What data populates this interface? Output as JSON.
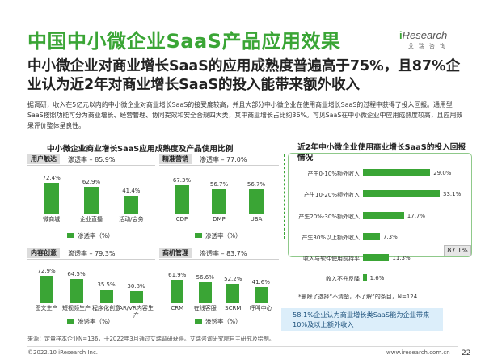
{
  "slide": {
    "title": "中国中小微企业SaaS产品应用效果",
    "headline": "中小微企业对商业增长SaaS的应用成熟度普遍高于75%，且87%企业认为近2年对商业增长SaaS的投入能带来额外收入",
    "intro": "据调研，收入在5亿元以内的中小微企业对商业增长SaaS的接受度较高，并且大部分中小微企业在使用商业增长SaaS的过程中获得了投入回报。通用型SaaS按照功能可分为商业增长、经营管理、协同提效和安全合规四大类，其中商业增长占比约36%。可见SaaS在中小微企业中应用成熟度较高，且应用效果评价整体呈良性。",
    "logo_name": "Research",
    "logo_prefix": "i",
    "logo_sub": "艾瑞咨询"
  },
  "left_chart": {
    "title": "中小微企业商业增长SaaS应用成熟度及产品使用比例",
    "legend_label": "渗透率（%）",
    "panels": [
      {
        "tag": "用户触达",
        "rate_text": "渗透率 – 85.9%",
        "categories": [
          "微商城",
          "企业直播",
          "活动/会务"
        ],
        "values": [
          72.4,
          62.9,
          41.4
        ],
        "value_labels": [
          "72.4%",
          "62.9%",
          "41.4%"
        ]
      },
      {
        "tag": "精准营销",
        "rate_text": "渗透率 – 77.0%",
        "categories": [
          "CDP",
          "DMP",
          "UBA"
        ],
        "values": [
          67.3,
          56.7,
          56.7
        ],
        "value_labels": [
          "67.3%",
          "56.7%",
          "56.7%"
        ]
      },
      {
        "tag": "内容创意",
        "rate_text": "渗透率 – 79.3%",
        "categories": [
          "图文生产",
          "短视频生产",
          "程序化创意",
          "AR/VR内容生产"
        ],
        "values": [
          72.9,
          64.5,
          35.5,
          30.8
        ],
        "value_labels": [
          "72.9%",
          "64.5%",
          "35.5%",
          "30.8%"
        ]
      },
      {
        "tag": "商机管理",
        "rate_text": "渗透率 – 83.7%",
        "categories": [
          "CRM",
          "在线客服",
          "SCRM",
          "呼叫中心"
        ],
        "values": [
          61.9,
          56.6,
          52.2,
          41.6
        ],
        "value_labels": [
          "61.9%",
          "56.6%",
          "52.2%",
          "41.6%"
        ]
      }
    ]
  },
  "chart_data": {
    "type": "bar",
    "title": "近2年中小微企业使用商业增长SaaS的投入回报情况",
    "categories": [
      "产生0-10%额外收入",
      "产生10-20%额外收入",
      "产生20%-30%额外收入",
      "产生30%以上额外收入",
      "收入与软件使用前持平",
      "收入不升反降"
    ],
    "values": [
      29.0,
      33.1,
      17.7,
      7.3,
      11.3,
      1.6
    ],
    "value_labels": [
      "29.0%",
      "33.1%",
      "17.7%",
      "7.3%",
      "11.3%",
      "1.6%"
    ],
    "group_total": "87.1%",
    "note": "*删除了选择“不清楚，不了解”的条目，N=124",
    "callout": "58.1%企业认为商业增长类SaaS能为企业带来10%及以上额外收入"
  },
  "footer": {
    "source": "来源：定量样本企业N=136，于2022年3月通过艾瑞调研获得。艾瑞咨询研究院自主研究及绘制。",
    "copyright": "©2022.10 iResearch Inc.",
    "website": "www.iresearch.com.cn",
    "page": "22"
  }
}
